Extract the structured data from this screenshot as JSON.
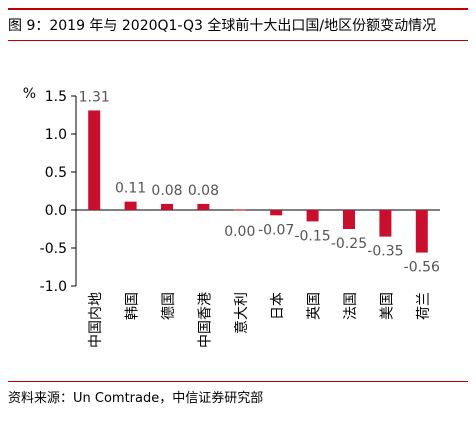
{
  "figure": {
    "title": "图 9：2019 年与 2020Q1-Q3 全球前十大出口国/地区份额变动情况",
    "source": "资料来源：Un Comtrade，中信证券研究部"
  },
  "chart_data": {
    "type": "bar",
    "unit_label": "%",
    "categories": [
      "中国内地",
      "韩国",
      "德国",
      "中国香港",
      "意大利",
      "日本",
      "英国",
      "法国",
      "美国",
      "荷兰"
    ],
    "values": [
      1.31,
      0.11,
      0.08,
      0.08,
      0.0,
      -0.07,
      -0.15,
      -0.25,
      -0.35,
      -0.56
    ],
    "value_labels": [
      "1.31",
      "0.11",
      "0.08",
      "0.08",
      "0.00",
      "-0.07",
      "-0.15",
      "-0.25",
      "-0.35",
      "-0.56"
    ],
    "ylim": [
      -1.0,
      1.5
    ],
    "yticks": [
      -1.0,
      -0.5,
      0.0,
      0.5,
      1.0,
      1.5
    ],
    "ytick_labels": [
      "-1.0",
      "-0.5",
      "0.0",
      "0.5",
      "1.0",
      "1.5"
    ],
    "grid": false,
    "legend": "none",
    "bar_color": "#c8102e",
    "label_color": "#555555"
  }
}
